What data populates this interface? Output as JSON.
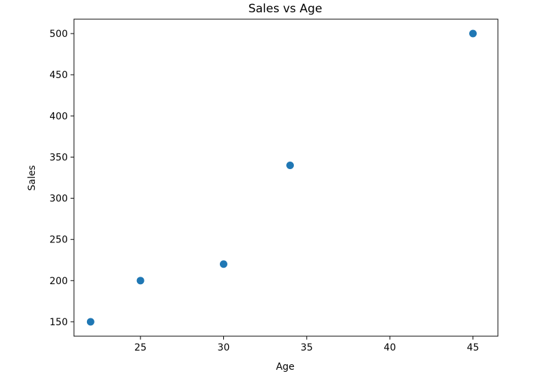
{
  "chart_data": {
    "type": "scatter",
    "title": "Sales vs Age",
    "xlabel": "Age",
    "ylabel": "Sales",
    "x": [
      22,
      25,
      30,
      34,
      45
    ],
    "y": [
      150,
      200,
      220,
      340,
      500
    ],
    "xlim": [
      21,
      46.5
    ],
    "ylim": [
      132.5,
      517.5
    ],
    "xticks": [
      25,
      30,
      35,
      40,
      45
    ],
    "yticks": [
      150,
      200,
      250,
      300,
      350,
      400,
      450,
      500
    ],
    "grid": false,
    "marker_color": "#1f77b4"
  }
}
